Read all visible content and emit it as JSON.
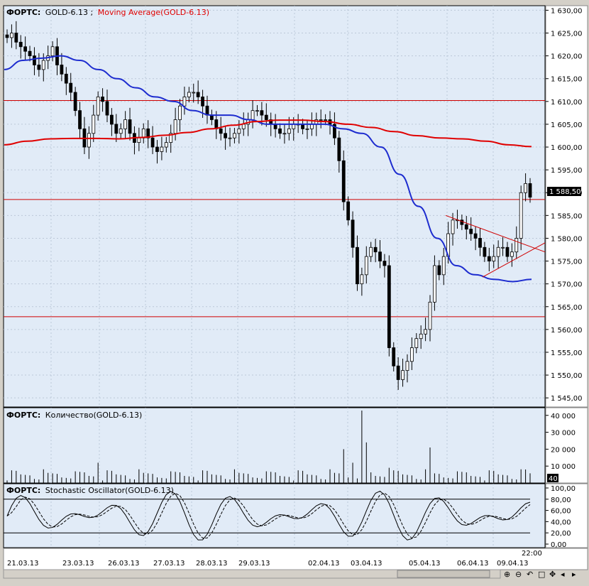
{
  "colors": {
    "bg": "#e1ebf7",
    "grid": "#bcc8d8",
    "candle": "#000000",
    "ma_short": "#1d2ccf",
    "ma_long": "#e00000",
    "level": "#d00000",
    "label_bg": "#000000"
  },
  "price_pane": {
    "label_prefix": "ФОРТС:",
    "symbol": "GOLD-6.13",
    "indicator": "Moving Average(GOLD-6.13)",
    "last_price": "1 588,50",
    "ticks": [
      "1 630,00",
      "1 625,00",
      "1 620,00",
      "1 615,00",
      "1 610,00",
      "1 605,00",
      "1 600,00",
      "1 595,00",
      "1 590,00",
      "1 585,00",
      "1 580,00",
      "1 575,00",
      "1 570,00",
      "1 565,00",
      "1 560,00",
      "1 555,00",
      "1 550,00",
      "1 545,00"
    ]
  },
  "volume_pane": {
    "label_prefix": "ФОРТС:",
    "title": "Количество(GOLD-6.13)",
    "ticks": [
      "40 000",
      "30 000",
      "20 000",
      "10 000"
    ],
    "last_value": "40"
  },
  "stoch_pane": {
    "label_prefix": "ФОРТС:",
    "title": "Stochastic Oscillator(GOLD-6.13)",
    "ticks": [
      "100,00",
      "80,00",
      "60,00",
      "40,00",
      "20,00",
      "0,00"
    ]
  },
  "time_axis": {
    "labels": [
      "21.03.13",
      "23.03.13",
      "26.03.13",
      "27.03.13",
      "28.03.13",
      "29.03.13",
      "02.04.13",
      "03.04.13",
      "05.04.13",
      "06.04.13",
      "09.04.13"
    ],
    "last_time": "22:00"
  },
  "toolbar": {
    "icons": [
      "zoom-in-icon",
      "zoom-out-icon",
      "undo-icon",
      "scroll-lock-icon",
      "move-icon",
      "scroll-left-icon",
      "scroll-right-icon"
    ]
  },
  "chart_data": [
    {
      "type": "candlestick",
      "title": "GOLD-6.13",
      "ylim": [
        1543,
        1631
      ],
      "levels": [
        1610.2,
        1588.5,
        1562.8
      ],
      "series": [
        {
          "name": "GOLD-6.13",
          "values": [
            1624,
            1625,
            1623,
            1622,
            1621,
            1620,
            1618,
            1617,
            1619,
            1620,
            1622,
            1618,
            1616,
            1614,
            1612,
            1608,
            1604,
            1600,
            1603,
            1607,
            1611,
            1610,
            1607,
            1605,
            1603,
            1604,
            1606,
            1603,
            1601,
            1602,
            1604,
            1602,
            1600,
            1599,
            1600,
            1601,
            1603,
            1606,
            1609,
            1611,
            1612,
            1612,
            1611,
            1609,
            1607,
            1606,
            1604,
            1603,
            1602,
            1602,
            1603,
            1604,
            1605,
            1606,
            1608,
            1608,
            1607,
            1606,
            1605,
            1604,
            1603,
            1603,
            1604,
            1605,
            1605,
            1604,
            1604,
            1605,
            1606,
            1606,
            1606,
            1605,
            1602,
            1597,
            1588,
            1584,
            1578,
            1570,
            1572,
            1576,
            1578,
            1577,
            1575,
            1574,
            1556,
            1552,
            1549,
            1551,
            1553,
            1556,
            1558,
            1559,
            1560,
            1566,
            1574,
            1572,
            1576,
            1581,
            1584,
            1584,
            1583,
            1582,
            1581,
            1580,
            1578,
            1576,
            1575,
            1576,
            1578,
            1578,
            1576,
            1577,
            1580,
            1590,
            1592,
            1589
          ]
        },
        {
          "name": "Moving Average (short)",
          "values": [
            1617,
            1619,
            1619.5,
            1620,
            1619,
            1617,
            1615,
            1613,
            1611,
            1610,
            1608,
            1607,
            1607,
            1606,
            1605,
            1605,
            1605,
            1605,
            1604,
            1603,
            1600,
            1594,
            1587,
            1580,
            1574,
            1572,
            1571,
            1570.5,
            1571
          ]
        },
        {
          "name": "Moving Average (long)",
          "values": [
            1600.5,
            1601.3,
            1601.8,
            1601.9,
            1601.9,
            1601.8,
            1602.1,
            1602.6,
            1603.2,
            1604,
            1604.8,
            1605.6,
            1605.9,
            1605.9,
            1605.6,
            1605,
            1604.3,
            1603.4,
            1602.5,
            1602,
            1601.8,
            1601.3,
            1600.5,
            1600.1
          ]
        }
      ]
    },
    {
      "type": "bar",
      "title": "Количество(GOLD-6.13)",
      "ylim": [
        0,
        42000
      ],
      "series": [
        {
          "name": "Количество",
          "values": []
        }
      ]
    },
    {
      "type": "line",
      "title": "Stochastic Oscillator(GOLD-6.13)",
      "ylim": [
        0,
        100
      ],
      "levels": [
        80,
        20
      ]
    }
  ]
}
